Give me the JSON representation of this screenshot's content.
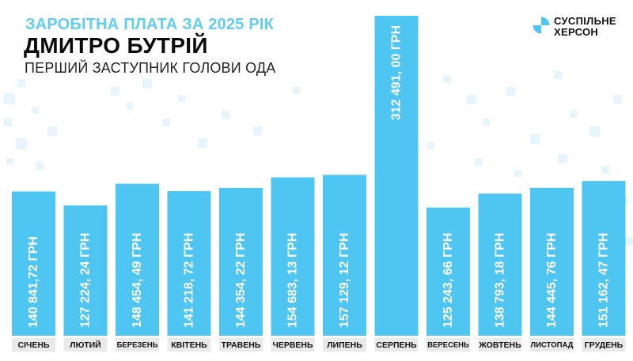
{
  "header": {
    "title": "ЗАРОБІТНА ПЛАТА ЗА 2025 РІК",
    "name": "ДМИТРО БУТРІЙ",
    "subtitle": "ПЕРШИЙ ЗАСТУПНИК ГОЛОВИ ОДА"
  },
  "logo": {
    "line1": "СУСПІЛЬНЕ",
    "line2": "ХЕРСОН",
    "icon": "suspilne-logo-icon"
  },
  "colors": {
    "bar": "#4fc6f2",
    "title": "#5fcdf4",
    "label_bg": "#e9e9e9",
    "pattern": "#e6f5fc"
  },
  "chart_data": {
    "type": "bar",
    "categories": [
      "СІЧЕНЬ",
      "ЛЮТИЙ",
      "БЕРЕЗЕНЬ",
      "КВІТЕНЬ",
      "ТРАВЕНЬ",
      "ЧЕРВЕНЬ",
      "ЛИПЕНЬ",
      "СЕРПЕНЬ",
      "ВЕРЕСЕНЬ",
      "ЖОВТЕНЬ",
      "ЛИСТОПАД",
      "ГРУДЕНЬ"
    ],
    "values": [
      140841.72,
      127224.24,
      148454.49,
      141218.72,
      144354.22,
      154683.13,
      157129.12,
      312491.0,
      125243.66,
      138793.18,
      144445.76,
      151162.47
    ],
    "data_labels": [
      "140 841,72 ГРН",
      "127 224, 24 ГРН",
      "148 454, 49 ГРН",
      "141 218, 72 ГРН",
      "144 354, 22 ГРН",
      "154 683, 13 ГРН",
      "157 129, 12 ГРН",
      "312 491, 00 ГРН",
      "125 243, 66 ГРН",
      "138 793, 18 ГРН",
      "144 445, 76 ГРН",
      "151 162, 47 ГРН"
    ],
    "ylim": [
      0,
      312491
    ],
    "grid": false
  }
}
